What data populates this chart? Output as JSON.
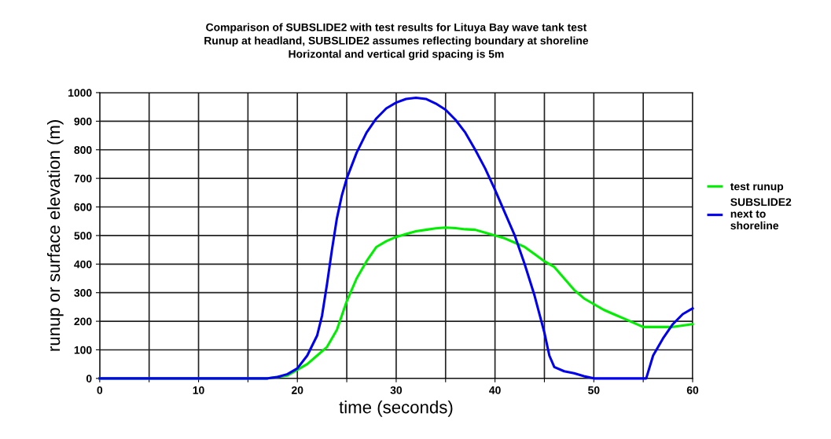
{
  "chart_data": {
    "type": "line",
    "title": "Comparison of SUBSLIDE2 with test results for Lituya Bay wave tank test\nRunup at headland, SUBSLIDE2 assumes reflecting boundary at shoreline\nHorizontal and vertical grid spacing is 5m",
    "xlabel": "time (seconds)",
    "ylabel": "runup or surface elevation (m)",
    "xlim": [
      0,
      60
    ],
    "ylim": [
      0,
      1000
    ],
    "xticks": [
      0,
      {
        "value": 5,
        "label": null
      },
      10,
      {
        "value": 15,
        "label": null
      },
      20,
      {
        "value": 25,
        "label": null
      },
      30,
      {
        "value": 35,
        "label": null
      },
      40,
      {
        "value": 45,
        "label": null
      },
      50,
      {
        "value": 55,
        "label": null
      },
      60
    ],
    "yticks": [
      0,
      100,
      200,
      300,
      400,
      500,
      600,
      700,
      800,
      900,
      1000
    ],
    "grid": true,
    "legend": "right",
    "series": [
      {
        "name": "test runup",
        "color": "#00ee00",
        "x": [
          0,
          17,
          19,
          20,
          21,
          22,
          23,
          24,
          25,
          26,
          27,
          28,
          29,
          30,
          31,
          32,
          33,
          34,
          35,
          36,
          37,
          38,
          39,
          40,
          41,
          42,
          43,
          44,
          45,
          46,
          47,
          48,
          49,
          50,
          51,
          52,
          53,
          54,
          55,
          56,
          57,
          58,
          59,
          60
        ],
        "values": [
          0,
          0,
          10,
          30,
          50,
          80,
          110,
          170,
          270,
          350,
          410,
          460,
          480,
          495,
          505,
          515,
          520,
          525,
          528,
          526,
          522,
          520,
          510,
          500,
          490,
          475,
          460,
          435,
          410,
          390,
          350,
          310,
          280,
          260,
          240,
          225,
          210,
          195,
          180,
          180,
          180,
          180,
          185,
          190
        ]
      },
      {
        "name": "SUBSLIDE2\nnext to\nshoreline",
        "color": "#0000ee",
        "x": [
          0,
          17,
          18,
          19,
          20,
          21,
          22,
          22.5,
          23,
          23.5,
          24,
          24.5,
          25,
          26,
          27,
          28,
          29,
          30,
          31,
          32,
          33,
          34,
          35,
          36,
          37,
          38,
          39,
          40,
          41,
          42,
          43,
          44,
          45,
          45.5,
          46,
          47,
          48,
          49,
          50,
          55.3,
          56,
          57,
          58,
          59,
          60
        ],
        "values": [
          0,
          0,
          5,
          15,
          35,
          80,
          150,
          220,
          330,
          450,
          560,
          640,
          700,
          790,
          860,
          910,
          945,
          965,
          978,
          982,
          978,
          962,
          940,
          905,
          860,
          800,
          735,
          660,
          580,
          500,
          400,
          290,
          160,
          80,
          40,
          25,
          18,
          8,
          0,
          0,
          80,
          140,
          190,
          225,
          245
        ]
      }
    ]
  }
}
